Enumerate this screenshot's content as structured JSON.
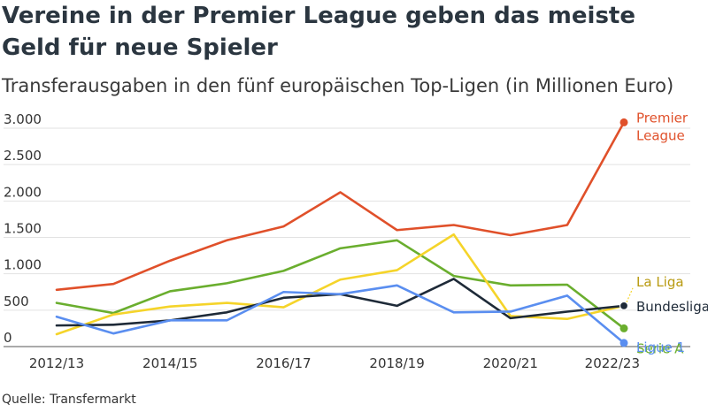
{
  "title": "Vereine in der Premier League geben das meiste Geld für neue Spieler",
  "subtitle": "Transferausgaben in den fünf europäischen Top-Ligen (in Millionen Euro)",
  "source": "Quelle: Transfermarkt",
  "chart_data": {
    "type": "line",
    "x": [
      2013,
      2014,
      2015,
      2016,
      2017,
      2018,
      2019,
      2020,
      2021,
      2022,
      2023
    ],
    "x_tick_labels": [
      {
        "x": 2013,
        "label": "2012/13"
      },
      {
        "x": 2015,
        "label": "2014/15"
      },
      {
        "x": 2017,
        "label": "2016/17"
      },
      {
        "x": 2019,
        "label": "2018/19"
      },
      {
        "x": 2021,
        "label": "2020/21"
      },
      {
        "x": 2023,
        "label": "2022/23"
      }
    ],
    "y_ticks": [
      0,
      500,
      1000,
      1500,
      2000,
      2500,
      3000
    ],
    "y_tick_labels": [
      "0",
      "500",
      "1.000",
      "1.500",
      "2.000",
      "2.500",
      "3.000"
    ],
    "ylim": [
      0,
      3100
    ],
    "grid": true,
    "legend": "direct labels at line ends",
    "series": [
      {
        "name": "Premier League",
        "label_lines": [
          "Premier",
          "League"
        ],
        "color": "#e0502a",
        "values": [
          780,
          860,
          1180,
          1460,
          1650,
          2120,
          1600,
          1670,
          1530,
          1670,
          3080
        ]
      },
      {
        "name": "Serie A",
        "label_lines": [
          "Serie A"
        ],
        "color": "#6aae2e",
        "values": [
          600,
          460,
          760,
          870,
          1040,
          1350,
          1460,
          970,
          840,
          850,
          250
        ]
      },
      {
        "name": "La Liga",
        "label_lines": [
          "La Liga"
        ],
        "color": "#f5d42a",
        "values": [
          170,
          440,
          550,
          600,
          540,
          920,
          1050,
          1540,
          420,
          380,
          560
        ]
      },
      {
        "name": "Bundesliga",
        "label_lines": [
          "Bundesliga"
        ],
        "color": "#1e2a38",
        "values": [
          290,
          300,
          360,
          470,
          670,
          720,
          560,
          930,
          390,
          480,
          560
        ]
      },
      {
        "name": "Ligue 1",
        "label_lines": [
          "Ligue 1"
        ],
        "color": "#5a8ef0",
        "values": [
          410,
          180,
          360,
          360,
          750,
          720,
          840,
          470,
          480,
          700,
          50
        ]
      }
    ]
  }
}
